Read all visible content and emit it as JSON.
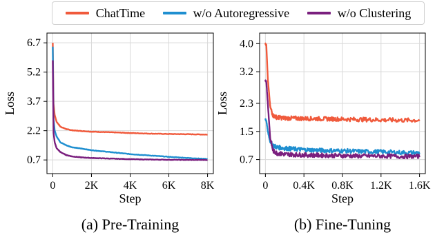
{
  "legend": [
    {
      "name": "ChatTime",
      "color": "#f05a3c"
    },
    {
      "name": "w/o Autoregressive",
      "color": "#1f8fd0"
    },
    {
      "name": "w/o Clustering",
      "color": "#7a1f7e"
    }
  ],
  "chart_data": [
    {
      "type": "line",
      "title": "(a) Pre-Training",
      "xlabel": "Step",
      "ylabel": "Loss",
      "xlim": [
        -300,
        8300
      ],
      "ylim": [
        0.0,
        7.2
      ],
      "xticks": [
        0,
        2000,
        4000,
        6000,
        8000
      ],
      "xtick_labels": [
        "0",
        "2K",
        "4K",
        "6K",
        "8K"
      ],
      "yticks": [
        0.7,
        2.2,
        3.7,
        5.2,
        6.7
      ],
      "ytick_labels": [
        "0.7",
        "2.2",
        "3.7",
        "5.2",
        "6.7"
      ],
      "grid": true,
      "series": [
        {
          "name": "ChatTime",
          "color": "#f05a3c",
          "x": [
            0,
            40,
            100,
            200,
            400,
            700,
            1000,
            1500,
            2000,
            3000,
            4000,
            5000,
            6000,
            7000,
            8000
          ],
          "y": [
            6.7,
            3.6,
            3.0,
            2.65,
            2.4,
            2.28,
            2.22,
            2.18,
            2.15,
            2.12,
            2.08,
            2.05,
            2.03,
            2.02,
            2.0
          ]
        },
        {
          "name": "w/o Autoregressive",
          "color": "#1f8fd0",
          "x": [
            0,
            40,
            100,
            200,
            400,
            700,
            1000,
            1500,
            2000,
            3000,
            4000,
            5000,
            6000,
            7000,
            8000
          ],
          "y": [
            6.5,
            2.8,
            2.2,
            1.9,
            1.6,
            1.45,
            1.35,
            1.28,
            1.2,
            1.1,
            1.0,
            0.93,
            0.86,
            0.8,
            0.75
          ]
        },
        {
          "name": "w/o Clustering",
          "color": "#7a1f7e",
          "x": [
            0,
            40,
            100,
            200,
            400,
            700,
            1000,
            1500,
            2000,
            3000,
            4000,
            5000,
            6000,
            7000,
            8000
          ],
          "y": [
            5.8,
            2.1,
            1.6,
            1.3,
            1.1,
            0.95,
            0.88,
            0.83,
            0.8,
            0.77,
            0.74,
            0.72,
            0.71,
            0.7,
            0.7
          ]
        }
      ]
    },
    {
      "type": "line",
      "title": "(b) Fine-Tuning",
      "xlabel": "Step",
      "ylabel": "Loss",
      "xlim": [
        -60,
        1660
      ],
      "ylim": [
        0.3,
        4.3
      ],
      "xticks": [
        0,
        400,
        800,
        1200,
        1600
      ],
      "xtick_labels": [
        "0",
        "0.4K",
        "0.8K",
        "1.2K",
        "1.6K"
      ],
      "yticks": [
        0.7,
        1.5,
        2.3,
        3.2,
        4.0
      ],
      "ytick_labels": [
        "0.7",
        "1.5",
        "2.3",
        "3.2",
        "4.0"
      ],
      "grid": true,
      "series": [
        {
          "name": "ChatTime",
          "color": "#f05a3c",
          "x": [
            0,
            10,
            25,
            50,
            80,
            120,
            200,
            400,
            600,
            800,
            1000,
            1200,
            1400,
            1600
          ],
          "y": [
            4.0,
            3.95,
            3.0,
            2.2,
            1.95,
            1.9,
            1.88,
            1.87,
            1.86,
            1.85,
            1.84,
            1.83,
            1.82,
            1.82
          ]
        },
        {
          "name": "w/o Autoregressive",
          "color": "#1f8fd0",
          "x": [
            0,
            10,
            25,
            50,
            80,
            120,
            200,
            400,
            600,
            800,
            1000,
            1200,
            1400,
            1600
          ],
          "y": [
            1.85,
            1.8,
            1.5,
            1.2,
            1.1,
            1.05,
            1.02,
            0.98,
            0.96,
            0.95,
            0.93,
            0.92,
            0.9,
            0.89
          ]
        },
        {
          "name": "w/o Clustering",
          "color": "#7a1f7e",
          "x": [
            0,
            10,
            25,
            50,
            80,
            120,
            200,
            400,
            600,
            800,
            1000,
            1200,
            1400,
            1600
          ],
          "y": [
            2.95,
            2.9,
            2.3,
            1.3,
            0.95,
            0.88,
            0.85,
            0.83,
            0.82,
            0.81,
            0.8,
            0.8,
            0.79,
            0.79
          ]
        }
      ]
    }
  ]
}
